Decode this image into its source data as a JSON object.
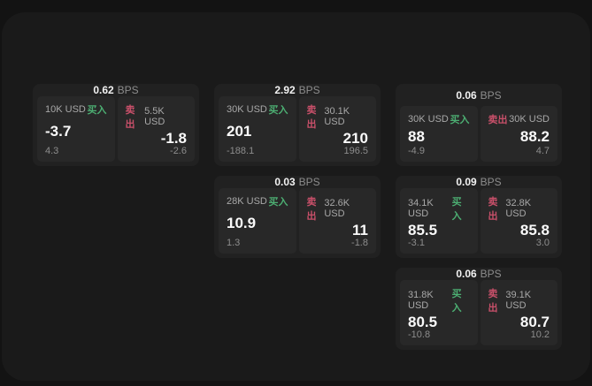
{
  "labels": {
    "buy": "买入",
    "sell": "卖出",
    "bps_unit": "BPS"
  },
  "colors": {
    "buy_green": "#4cae72",
    "sell_red": "#c9506a",
    "window_background": "#1a1a1a",
    "tile_background": "#212121",
    "quote_panel_background": "#282828"
  },
  "tiles": [
    {
      "grid": {
        "row": 1,
        "col": 1
      },
      "spread_bps": "0.62",
      "buy": {
        "size": "10K USD",
        "price": "-3.7",
        "skew": "4.3"
      },
      "sell": {
        "size": "5.5K USD",
        "price": "-1.8",
        "skew": "-2.6"
      }
    },
    {
      "grid": {
        "row": 1,
        "col": 2
      },
      "spread_bps": "2.92",
      "buy": {
        "size": "30K USD",
        "price": "201",
        "skew": "-188.1"
      },
      "sell": {
        "size": "30.1K USD",
        "price": "210",
        "skew": "196.5"
      }
    },
    {
      "grid": {
        "row": 1,
        "col": 3
      },
      "spread_bps": "0.06",
      "buy": {
        "size": "30K USD",
        "price": "88",
        "skew": "-4.9"
      },
      "sell": {
        "size": "30K USD",
        "price": "88.2",
        "skew": "4.7"
      }
    },
    {
      "grid": {
        "row": 2,
        "col": 2
      },
      "spread_bps": "0.03",
      "buy": {
        "size": "28K USD",
        "price": "10.9",
        "skew": "1.3"
      },
      "sell": {
        "size": "32.6K USD",
        "price": "11",
        "skew": "-1.8"
      }
    },
    {
      "grid": {
        "row": 2,
        "col": 3
      },
      "spread_bps": "0.09",
      "buy": {
        "size": "34.1K USD",
        "price": "85.5",
        "skew": "-3.1"
      },
      "sell": {
        "size": "32.8K USD",
        "price": "85.8",
        "skew": "3.0"
      }
    },
    {
      "grid": {
        "row": 3,
        "col": 3
      },
      "spread_bps": "0.06",
      "buy": {
        "size": "31.8K USD",
        "price": "80.5",
        "skew": "-10.8"
      },
      "sell": {
        "size": "39.1K USD",
        "price": "80.7",
        "skew": "10.2"
      }
    }
  ]
}
